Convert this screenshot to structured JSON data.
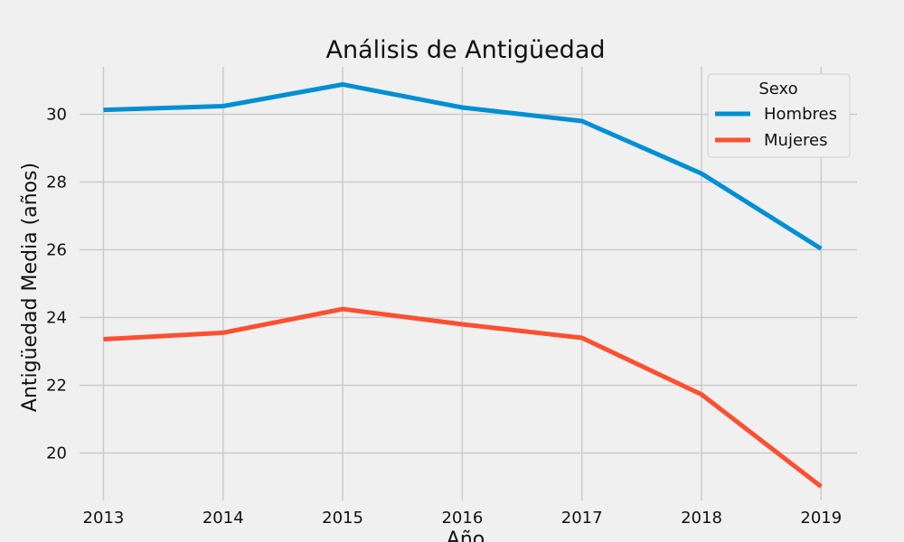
{
  "chart_data": {
    "type": "line",
    "title": "Análisis de Antigüedad",
    "xlabel": "Año",
    "ylabel": "Antigüedad Media (años)",
    "x": [
      2013,
      2014,
      2015,
      2016,
      2017,
      2018,
      2019
    ],
    "series": [
      {
        "name": "Hombres",
        "color": "#008fd5",
        "values": [
          30.13,
          30.24,
          30.88,
          30.2,
          29.8,
          28.25,
          26.03
        ]
      },
      {
        "name": "Mujeres",
        "color": "#fc4f30",
        "values": [
          23.36,
          23.55,
          24.25,
          23.8,
          23.4,
          21.73,
          19.01
        ]
      }
    ],
    "xlim": [
      2012.8,
      2019.3
    ],
    "ylim": [
      18.6,
      31.4
    ],
    "yticks": [
      20,
      22,
      24,
      26,
      28,
      30
    ],
    "xticks": [
      2013,
      2014,
      2015,
      2016,
      2017,
      2018,
      2019
    ],
    "grid": true,
    "legend": {
      "title": "Sexo",
      "placement": "top-right"
    }
  }
}
